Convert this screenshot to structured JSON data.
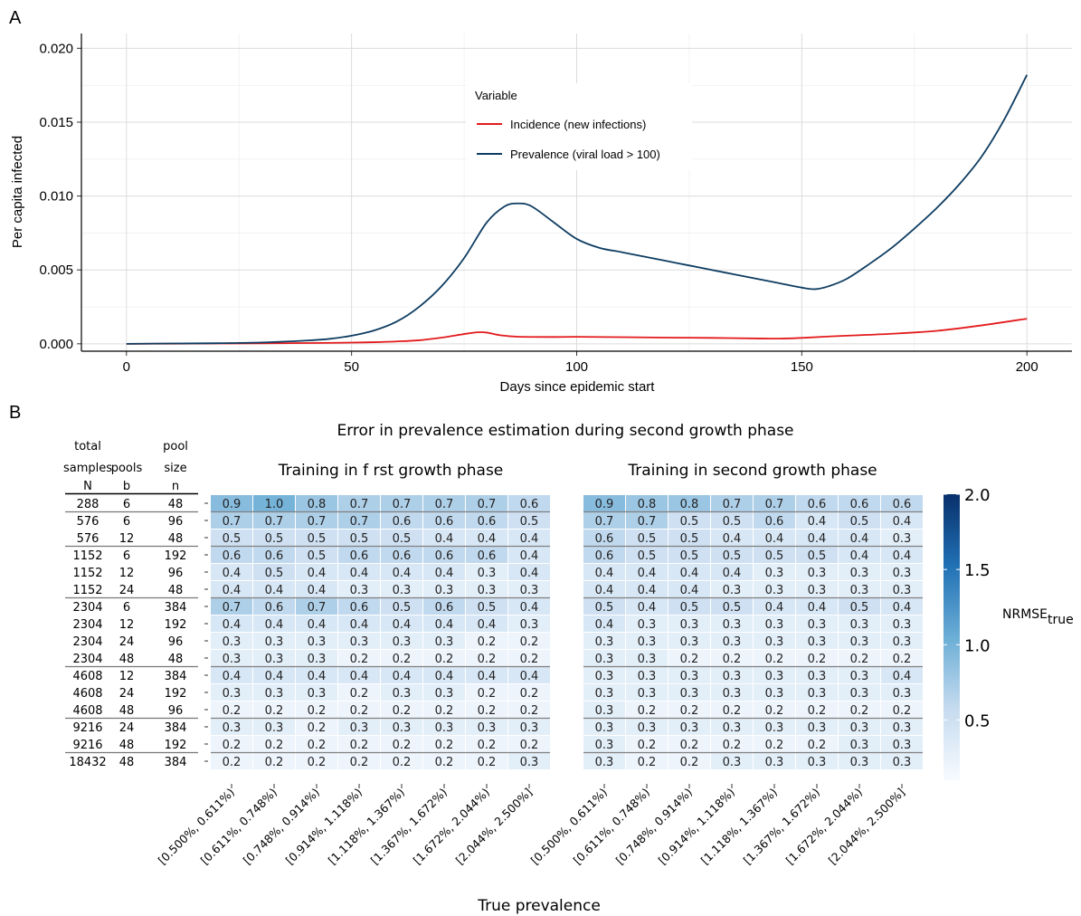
{
  "chart_data": [
    {
      "panel": "A",
      "type": "line",
      "xlabel": "Days since epidemic start",
      "ylabel": "Per capita infected",
      "xlim": [
        -10,
        210
      ],
      "ylim": [
        -0.0005,
        0.021
      ],
      "x_ticks": [
        0,
        50,
        100,
        150,
        200
      ],
      "y_ticks": [
        0.0,
        0.005,
        0.01,
        0.015,
        0.02
      ],
      "y_tick_labels": [
        "0.000",
        "0.005",
        "0.010",
        "0.015",
        "0.020"
      ],
      "grid": true,
      "legend": {
        "title": "Variable",
        "placement": "inside-top-center"
      },
      "series": [
        {
          "name": "Incidence (new infections)",
          "color": "#e31a1c",
          "points": [
            [
              0,
              0.0
            ],
            [
              10,
              1e-05
            ],
            [
              20,
              2e-05
            ],
            [
              30,
              3e-05
            ],
            [
              40,
              5e-05
            ],
            [
              50,
              8e-05
            ],
            [
              55,
              0.00011
            ],
            [
              60,
              0.00016
            ],
            [
              65,
              0.00024
            ],
            [
              70,
              0.00042
            ],
            [
              75,
              0.00066
            ],
            [
              78,
              0.00078
            ],
            [
              80,
              0.00076
            ],
            [
              83,
              0.00058
            ],
            [
              87,
              0.00048
            ],
            [
              95,
              0.00046
            ],
            [
              100,
              0.00047
            ],
            [
              110,
              0.00045
            ],
            [
              120,
              0.00042
            ],
            [
              130,
              0.0004
            ],
            [
              140,
              0.00036
            ],
            [
              145,
              0.00035
            ],
            [
              150,
              0.0004
            ],
            [
              155,
              0.00048
            ],
            [
              160,
              0.00055
            ],
            [
              170,
              0.00068
            ],
            [
              180,
              0.00088
            ],
            [
              190,
              0.00125
            ],
            [
              200,
              0.0017
            ]
          ]
        },
        {
          "name": "Prevalence (viral load > 100)",
          "color": "#0d3c61",
          "points": [
            [
              0,
              0.0
            ],
            [
              10,
              2e-05
            ],
            [
              20,
              4e-05
            ],
            [
              30,
              9e-05
            ],
            [
              40,
              0.00022
            ],
            [
              45,
              0.00033
            ],
            [
              50,
              0.00055
            ],
            [
              55,
              0.0009
            ],
            [
              60,
              0.0015
            ],
            [
              65,
              0.0025
            ],
            [
              70,
              0.0039
            ],
            [
              75,
              0.0058
            ],
            [
              80,
              0.0082
            ],
            [
              84,
              0.0093
            ],
            [
              87,
              0.0095
            ],
            [
              90,
              0.0093
            ],
            [
              95,
              0.0082
            ],
            [
              100,
              0.0071
            ],
            [
              105,
              0.0065
            ],
            [
              110,
              0.0062
            ],
            [
              115,
              0.0059
            ],
            [
              120,
              0.0056
            ],
            [
              125,
              0.0053
            ],
            [
              130,
              0.005
            ],
            [
              135,
              0.0047
            ],
            [
              140,
              0.0044
            ],
            [
              145,
              0.0041
            ],
            [
              150,
              0.0038
            ],
            [
              153,
              0.0037
            ],
            [
              156,
              0.0039
            ],
            [
              160,
              0.0044
            ],
            [
              165,
              0.0054
            ],
            [
              170,
              0.0065
            ],
            [
              175,
              0.0078
            ],
            [
              180,
              0.0092
            ],
            [
              185,
              0.0108
            ],
            [
              190,
              0.0127
            ],
            [
              195,
              0.0152
            ],
            [
              200,
              0.0182
            ]
          ]
        }
      ]
    },
    {
      "panel": "B",
      "type": "heatmap",
      "title": "Error in prevalence estimation during second growth phase",
      "xlabel": "True prevalence",
      "legend_title": "NRMSE",
      "legend_title_sub": "true",
      "colorbar": {
        "range": [
          0.1,
          2.0
        ],
        "ticks": [
          0.5,
          1.0,
          1.5,
          2.0
        ],
        "tick_labels": [
          "0.5",
          "1.0",
          "1.5",
          "2.0"
        ],
        "low_color": "#f7fbff",
        "high_color": "#08306b"
      },
      "column_headers": [
        {
          "lines": [
            "total",
            "samples",
            "N"
          ]
        },
        {
          "lines": [
            "",
            "pools",
            "b"
          ]
        },
        {
          "lines": [
            "pool",
            "size",
            "n"
          ]
        }
      ],
      "rows": [
        {
          "N": "288",
          "b": "6",
          "n": "48"
        },
        {
          "N": "576",
          "b": "6",
          "n": "96"
        },
        {
          "N": "576",
          "b": "12",
          "n": "48"
        },
        {
          "N": "1152",
          "b": "6",
          "n": "192"
        },
        {
          "N": "1152",
          "b": "12",
          "n": "96"
        },
        {
          "N": "1152",
          "b": "24",
          "n": "48"
        },
        {
          "N": "2304",
          "b": "6",
          "n": "384"
        },
        {
          "N": "2304",
          "b": "12",
          "n": "192"
        },
        {
          "N": "2304",
          "b": "24",
          "n": "96"
        },
        {
          "N": "2304",
          "b": "48",
          "n": "48"
        },
        {
          "N": "4608",
          "b": "12",
          "n": "384"
        },
        {
          "N": "4608",
          "b": "24",
          "n": "192"
        },
        {
          "N": "4608",
          "b": "48",
          "n": "96"
        },
        {
          "N": "9216",
          "b": "24",
          "n": "384"
        },
        {
          "N": "9216",
          "b": "48",
          "n": "192"
        },
        {
          "N": "18432",
          "b": "48",
          "n": "384"
        }
      ],
      "row_group_starts": [
        1,
        3,
        6,
        10,
        13,
        15
      ],
      "categories": [
        "[0.500%, 0.611%)",
        "[0.611%, 0.748%)",
        "[0.748%, 0.914%)",
        "[0.914%, 1.118%)",
        "[1.118%, 1.367%)",
        "[1.367%, 1.672%)",
        "[1.672%, 2.044%)",
        "[2.044%, 2.500%]"
      ],
      "panels": [
        {
          "title": "Training in f rst growth phase",
          "values": [
            [
              "0.9",
              "1.0",
              "0.8",
              "0.7",
              "0.7",
              "0.7",
              "0.7",
              "0.6"
            ],
            [
              "0.7",
              "0.7",
              "0.7",
              "0.7",
              "0.6",
              "0.6",
              "0.6",
              "0.5"
            ],
            [
              "0.5",
              "0.5",
              "0.5",
              "0.5",
              "0.5",
              "0.4",
              "0.4",
              "0.4"
            ],
            [
              "0.6",
              "0.6",
              "0.5",
              "0.6",
              "0.6",
              "0.6",
              "0.6",
              "0.4"
            ],
            [
              "0.4",
              "0.5",
              "0.4",
              "0.4",
              "0.4",
              "0.4",
              "0.3",
              "0.4"
            ],
            [
              "0.4",
              "0.4",
              "0.4",
              "0.3",
              "0.3",
              "0.3",
              "0.3",
              "0.3"
            ],
            [
              "0.7",
              "0.6",
              "0.7",
              "0.6",
              "0.5",
              "0.6",
              "0.5",
              "0.4"
            ],
            [
              "0.4",
              "0.4",
              "0.4",
              "0.4",
              "0.4",
              "0.4",
              "0.4",
              "0.3"
            ],
            [
              "0.3",
              "0.3",
              "0.3",
              "0.3",
              "0.3",
              "0.3",
              "0.2",
              "0.2"
            ],
            [
              "0.3",
              "0.3",
              "0.3",
              "0.2",
              "0.2",
              "0.2",
              "0.2",
              "0.2"
            ],
            [
              "0.4",
              "0.4",
              "0.4",
              "0.4",
              "0.4",
              "0.4",
              "0.4",
              "0.4"
            ],
            [
              "0.3",
              "0.3",
              "0.3",
              "0.2",
              "0.3",
              "0.3",
              "0.2",
              "0.2"
            ],
            [
              "0.2",
              "0.2",
              "0.2",
              "0.2",
              "0.2",
              "0.2",
              "0.2",
              "0.2"
            ],
            [
              "0.3",
              "0.3",
              "0.2",
              "0.3",
              "0.3",
              "0.3",
              "0.3",
              "0.3"
            ],
            [
              "0.2",
              "0.2",
              "0.2",
              "0.2",
              "0.2",
              "0.2",
              "0.2",
              "0.2"
            ],
            [
              "0.2",
              "0.2",
              "0.2",
              "0.2",
              "0.2",
              "0.2",
              "0.2",
              "0.3"
            ]
          ]
        },
        {
          "title": "Training in second growth phase",
          "values": [
            [
              "0.9",
              "0.8",
              "0.8",
              "0.7",
              "0.7",
              "0.6",
              "0.6",
              "0.6"
            ],
            [
              "0.7",
              "0.7",
              "0.5",
              "0.5",
              "0.6",
              "0.4",
              "0.5",
              "0.4"
            ],
            [
              "0.6",
              "0.5",
              "0.5",
              "0.4",
              "0.4",
              "0.4",
              "0.4",
              "0.3"
            ],
            [
              "0.6",
              "0.5",
              "0.5",
              "0.5",
              "0.5",
              "0.5",
              "0.4",
              "0.4"
            ],
            [
              "0.4",
              "0.4",
              "0.4",
              "0.4",
              "0.3",
              "0.3",
              "0.3",
              "0.3"
            ],
            [
              "0.4",
              "0.4",
              "0.4",
              "0.3",
              "0.3",
              "0.3",
              "0.3",
              "0.3"
            ],
            [
              "0.5",
              "0.4",
              "0.5",
              "0.5",
              "0.4",
              "0.4",
              "0.5",
              "0.4"
            ],
            [
              "0.4",
              "0.3",
              "0.3",
              "0.3",
              "0.3",
              "0.3",
              "0.3",
              "0.3"
            ],
            [
              "0.3",
              "0.3",
              "0.3",
              "0.3",
              "0.3",
              "0.3",
              "0.3",
              "0.3"
            ],
            [
              "0.3",
              "0.3",
              "0.2",
              "0.2",
              "0.2",
              "0.2",
              "0.2",
              "0.2"
            ],
            [
              "0.3",
              "0.3",
              "0.3",
              "0.3",
              "0.3",
              "0.3",
              "0.3",
              "0.4"
            ],
            [
              "0.3",
              "0.3",
              "0.3",
              "0.3",
              "0.3",
              "0.3",
              "0.3",
              "0.3"
            ],
            [
              "0.3",
              "0.2",
              "0.2",
              "0.2",
              "0.2",
              "0.2",
              "0.2",
              "0.2"
            ],
            [
              "0.3",
              "0.3",
              "0.3",
              "0.3",
              "0.3",
              "0.3",
              "0.3",
              "0.3"
            ],
            [
              "0.3",
              "0.2",
              "0.2",
              "0.2",
              "0.2",
              "0.2",
              "0.3",
              "0.3"
            ],
            [
              "0.3",
              "0.2",
              "0.2",
              "0.3",
              "0.3",
              "0.3",
              "0.3",
              "0.3"
            ]
          ]
        }
      ]
    }
  ],
  "labels": {
    "panel_a": "A",
    "panel_b": "B"
  }
}
